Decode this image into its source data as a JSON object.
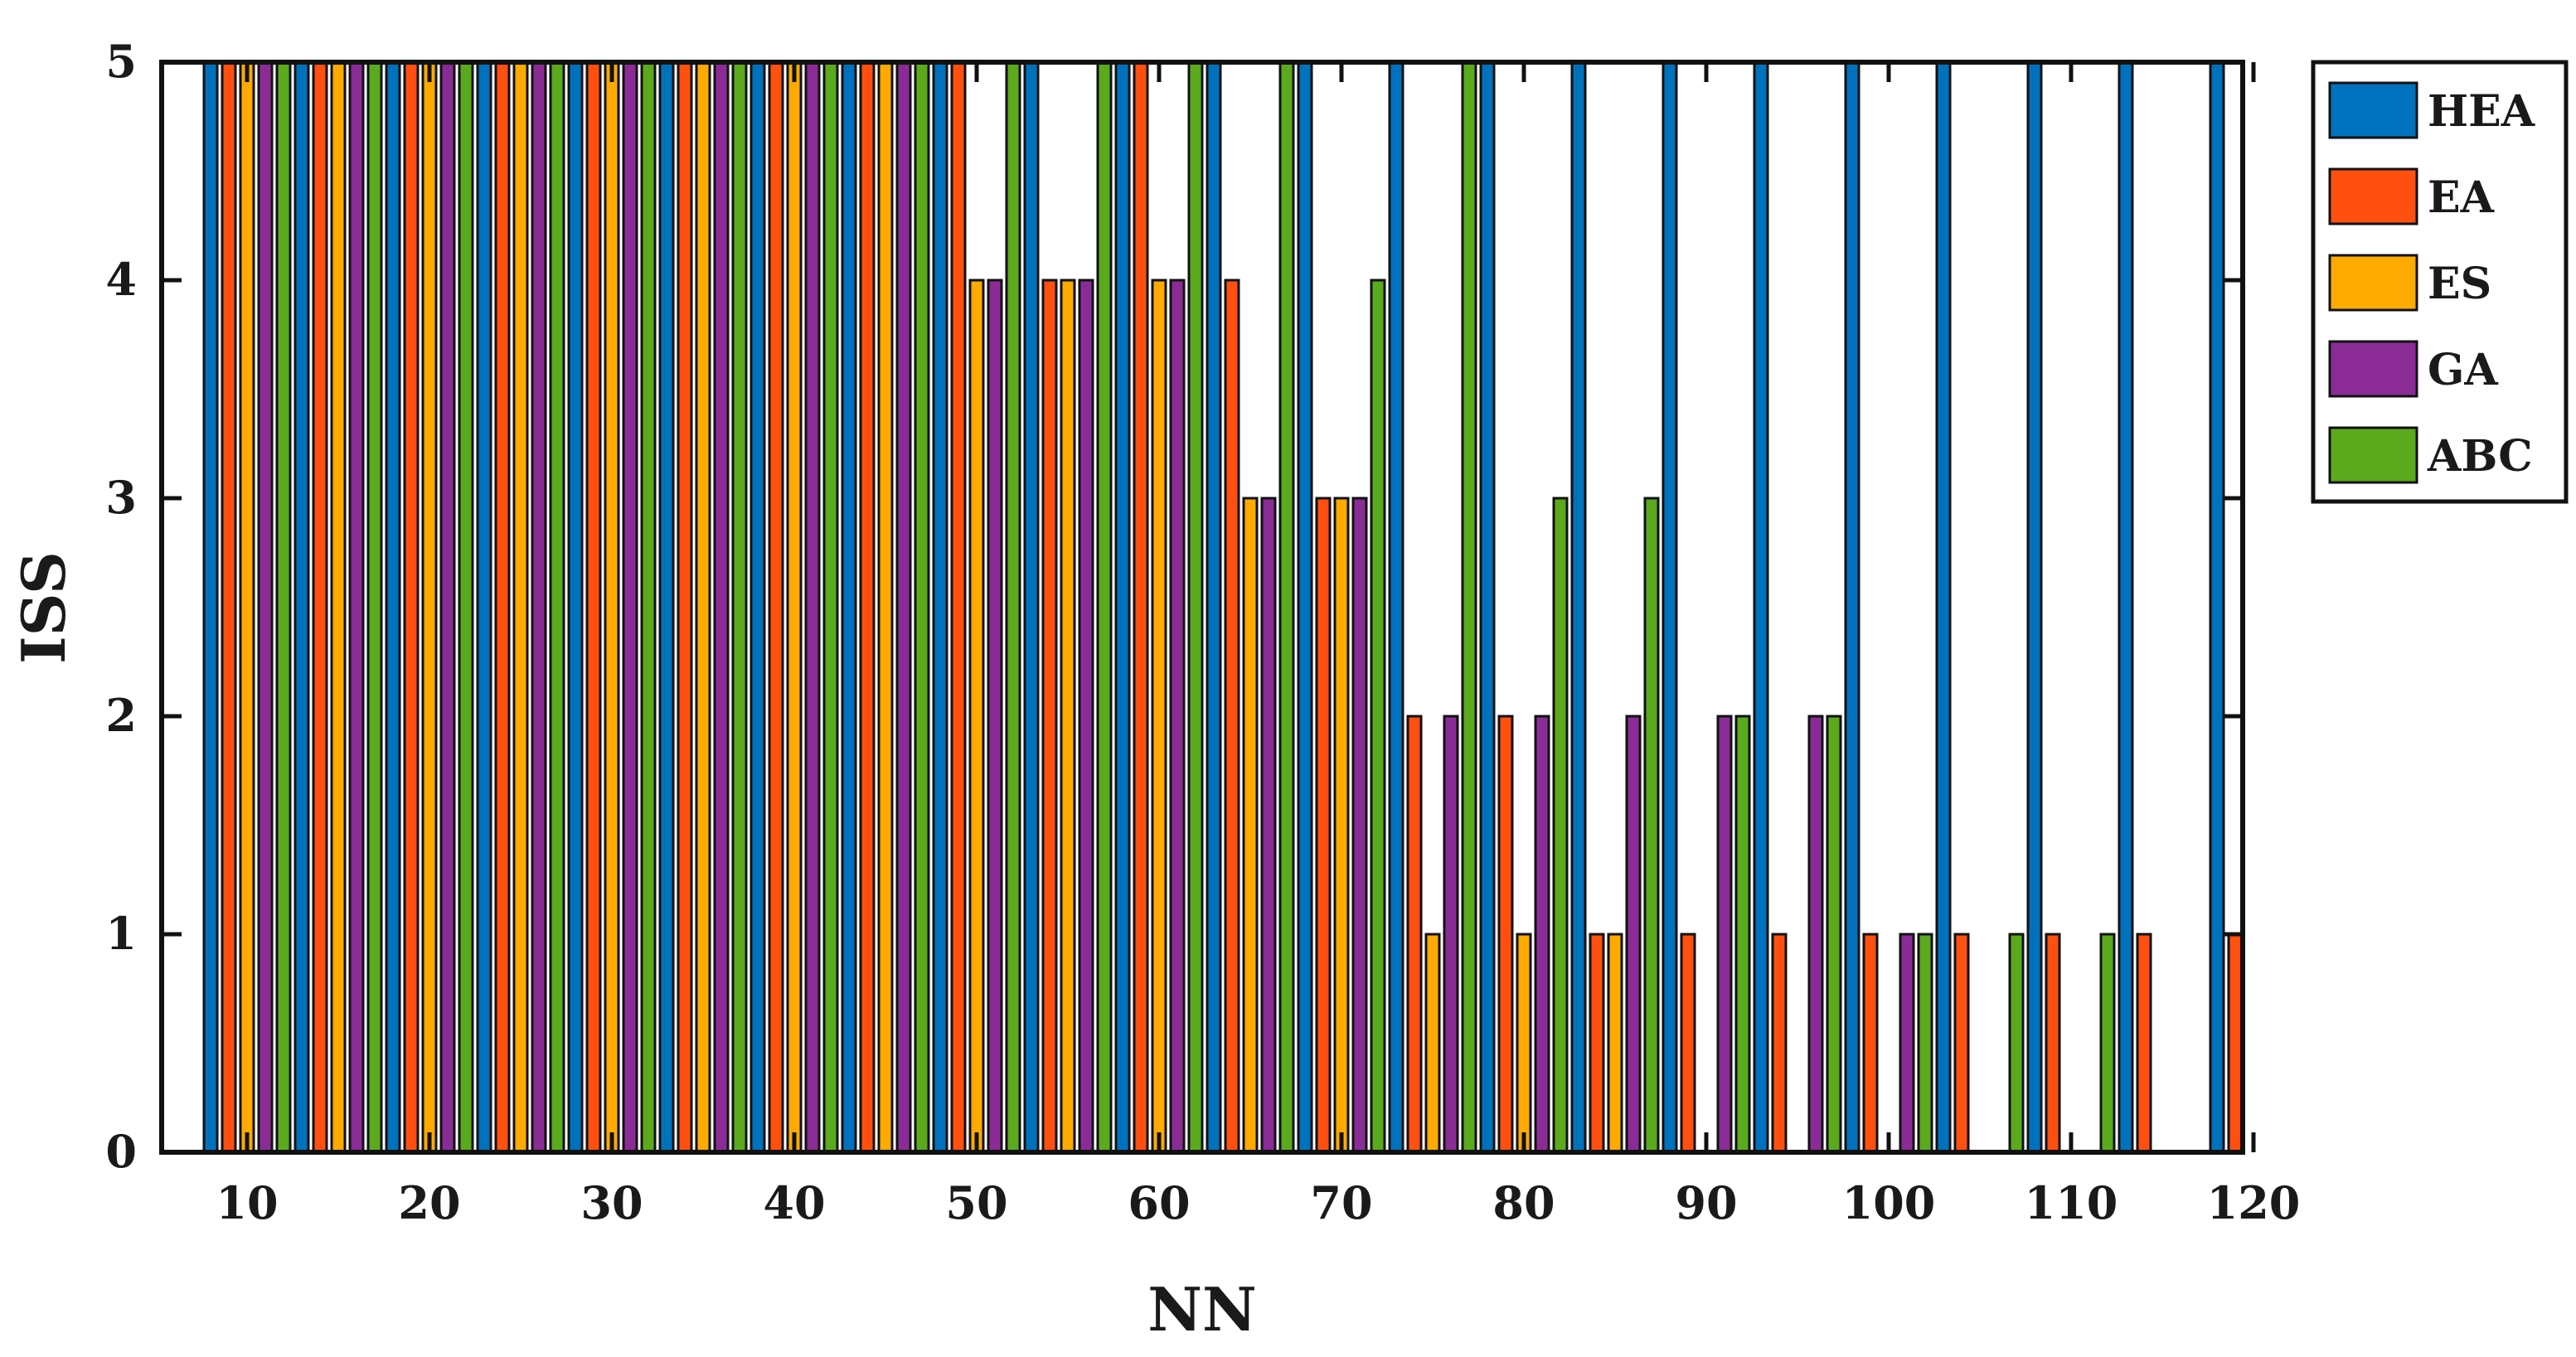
{
  "chart_data": {
    "type": "bar",
    "xlabel": "NN",
    "ylabel": "ISS",
    "ylim": [
      0,
      5
    ],
    "yticks": [
      "0",
      "1",
      "2",
      "3",
      "4",
      "5"
    ],
    "categories": [
      10,
      15,
      20,
      25,
      30,
      35,
      40,
      45,
      50,
      55,
      60,
      65,
      70,
      75,
      80,
      85,
      90,
      95,
      100,
      105,
      110,
      115,
      120
    ],
    "xtick_labels": [
      "10",
      "20",
      "30",
      "40",
      "50",
      "60",
      "70",
      "80",
      "90",
      "100",
      "110",
      "120"
    ],
    "grid": false,
    "legend_position": "outside-right-top",
    "series": [
      {
        "name": "HEA",
        "color": "#0072BD",
        "values": [
          5,
          5,
          5,
          5,
          5,
          5,
          5,
          5,
          5,
          5,
          5,
          5,
          5,
          5,
          5,
          5,
          5,
          5,
          5,
          5,
          5,
          5,
          5
        ]
      },
      {
        "name": "EA",
        "color": "#FF5010",
        "values": [
          5,
          5,
          5,
          5,
          5,
          5,
          5,
          5,
          5,
          4,
          5,
          4,
          3,
          2,
          2,
          1,
          1,
          1,
          1,
          1,
          1,
          1,
          1
        ]
      },
      {
        "name": "ES",
        "color": "#FFAA00",
        "values": [
          5,
          5,
          5,
          5,
          5,
          5,
          5,
          5,
          4,
          4,
          4,
          3,
          3,
          1,
          1,
          1,
          0,
          0,
          0,
          0,
          0,
          0,
          0
        ]
      },
      {
        "name": "GA",
        "color": "#8B2C96",
        "values": [
          5,
          5,
          5,
          5,
          5,
          5,
          5,
          5,
          4,
          4,
          4,
          3,
          3,
          2,
          2,
          2,
          2,
          2,
          1,
          0,
          0,
          0,
          0
        ]
      },
      {
        "name": "ABC",
        "color": "#5BAA1E",
        "values": [
          5,
          5,
          5,
          5,
          5,
          5,
          5,
          5,
          5,
          5,
          5,
          5,
          4,
          5,
          3,
          3,
          2,
          2,
          1,
          1,
          1,
          0,
          0
        ]
      }
    ]
  }
}
